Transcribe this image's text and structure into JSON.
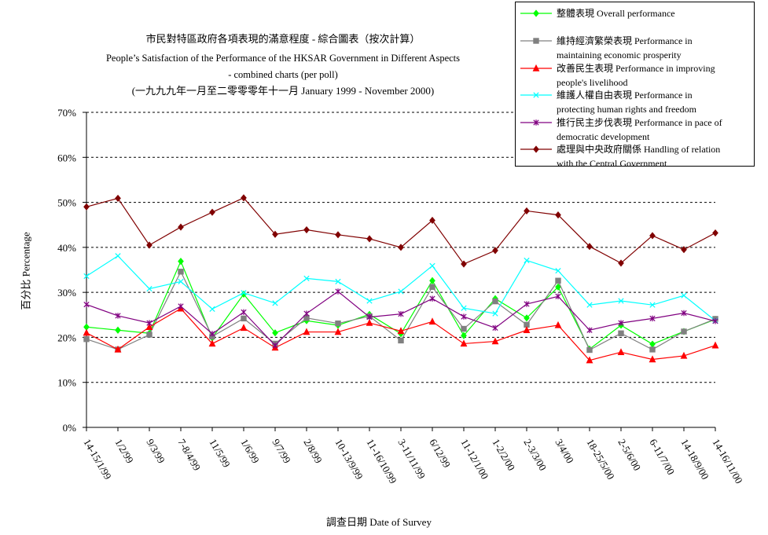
{
  "header": {
    "title_zh": "市民對特區政府各項表現的滿意程度  -  綜合圖表（按次計算）",
    "title_en": "People’s Satisfaction of the Performance of the HKSAR Government in Different Aspects",
    "subtitle": "- combined charts  (per poll)",
    "period": "(一九九九年一月至二零零零年十一月 January 1999 - November 2000)"
  },
  "chart_data": {
    "type": "line",
    "xlabel": "調查日期 Date of Survey",
    "ylabel": "百分比 Percentage",
    "ylim": [
      0,
      70
    ],
    "y_ticks": [
      "0%",
      "10%",
      "20%",
      "30%",
      "40%",
      "50%",
      "60%",
      "70%"
    ],
    "grid": true,
    "legend_position": "top-right",
    "categories": [
      "14-15/1/99",
      "1/2/99",
      "9/3/99",
      "7-8/4/99",
      "11/5/99",
      "1/6/99",
      "9/7/99",
      "2/8/99",
      "10-13/9/99",
      "11-16/10/99",
      "3-11/11/99",
      "6/12/99",
      "11-12/1/00",
      "1-2/2/00",
      "2-3/3/00",
      "3/4/00",
      "18-25/5/00",
      "2-5/6/00",
      "6-11/7/00",
      "14-18/9/00",
      "14-16/11/00"
    ],
    "series": [
      {
        "name": "整體表現 Overall performance",
        "color": "#00ff00",
        "marker": "diamond",
        "values": [
          22.3,
          21.6,
          20.9,
          36.9,
          19.9,
          29.6,
          21.0,
          23.7,
          22.7,
          25.1,
          20.8,
          32.6,
          20.4,
          28.6,
          24.3,
          31.2,
          17.4,
          22.7,
          18.5,
          21.3,
          24.0
        ]
      },
      {
        "name": "維持經濟繁榮表現 Performance in maintaining economic prosperity",
        "color": "#808080",
        "marker": "square",
        "values": [
          19.6,
          17.3,
          20.6,
          34.6,
          20.2,
          24.2,
          18.6,
          24.3,
          23.1,
          24.7,
          19.3,
          31.2,
          21.9,
          28.0,
          22.8,
          32.6,
          17.2,
          20.9,
          17.3,
          21.3,
          24.1
        ]
      },
      {
        "name": "改善民生表現 Performance in improving people's livelihood",
        "color": "#ff0000",
        "marker": "triangle",
        "values": [
          21.0,
          17.3,
          22.3,
          26.4,
          18.6,
          22.1,
          17.7,
          21.2,
          21.2,
          23.2,
          21.4,
          23.5,
          18.6,
          19.1,
          21.6,
          22.7,
          14.9,
          16.7,
          15.1,
          15.9,
          18.2
        ]
      },
      {
        "name": "維護人權自由表現 Performance in protecting human rights and freedom",
        "color": "#00ffff",
        "marker": "x",
        "values": [
          33.6,
          38.1,
          30.8,
          32.4,
          26.3,
          29.9,
          27.6,
          33.1,
          32.4,
          28.1,
          30.2,
          35.9,
          26.5,
          25.3,
          37.1,
          34.8,
          27.2,
          28.1,
          27.2,
          29.3,
          23.7
        ]
      },
      {
        "name": "推行民主步伐表現 Performance in pace of democratic development",
        "color": "#800080",
        "marker": "star",
        "values": [
          27.3,
          24.8,
          23.2,
          26.9,
          20.8,
          25.6,
          18.2,
          25.3,
          30.2,
          24.5,
          25.2,
          28.6,
          24.6,
          22.1,
          27.4,
          29.1,
          21.6,
          23.2,
          24.2,
          25.4,
          23.6
        ]
      },
      {
        "name": "處理與中央政府關係 Handling of relation with the Central Government",
        "color": "#800000",
        "marker": "diamond",
        "values": [
          49.0,
          50.9,
          40.5,
          44.5,
          47.8,
          51.0,
          42.9,
          43.9,
          42.8,
          41.9,
          40.0,
          46.0,
          36.3,
          39.3,
          48.1,
          47.2,
          40.2,
          36.5,
          42.6,
          39.5,
          43.2
        ]
      }
    ]
  },
  "legend": {
    "items": [
      {
        "lines": [
          "整體表現 Overall performance"
        ]
      },
      {
        "lines": [
          "維持經濟繁榮表現 Performance in",
          "maintaining economic prosperity"
        ]
      },
      {
        "lines": [
          "改善民生表現 Performance in improving",
          "people's livelihood"
        ]
      },
      {
        "lines": [
          "維護人權自由表現 Performance in",
          "protecting human rights and freedom"
        ]
      },
      {
        "lines": [
          "推行民主步伐表現 Performance in pace of",
          "democratic development"
        ]
      },
      {
        "lines": [
          "處理與中央政府關係 Handling of relation",
          "with the Central Government"
        ]
      }
    ]
  }
}
